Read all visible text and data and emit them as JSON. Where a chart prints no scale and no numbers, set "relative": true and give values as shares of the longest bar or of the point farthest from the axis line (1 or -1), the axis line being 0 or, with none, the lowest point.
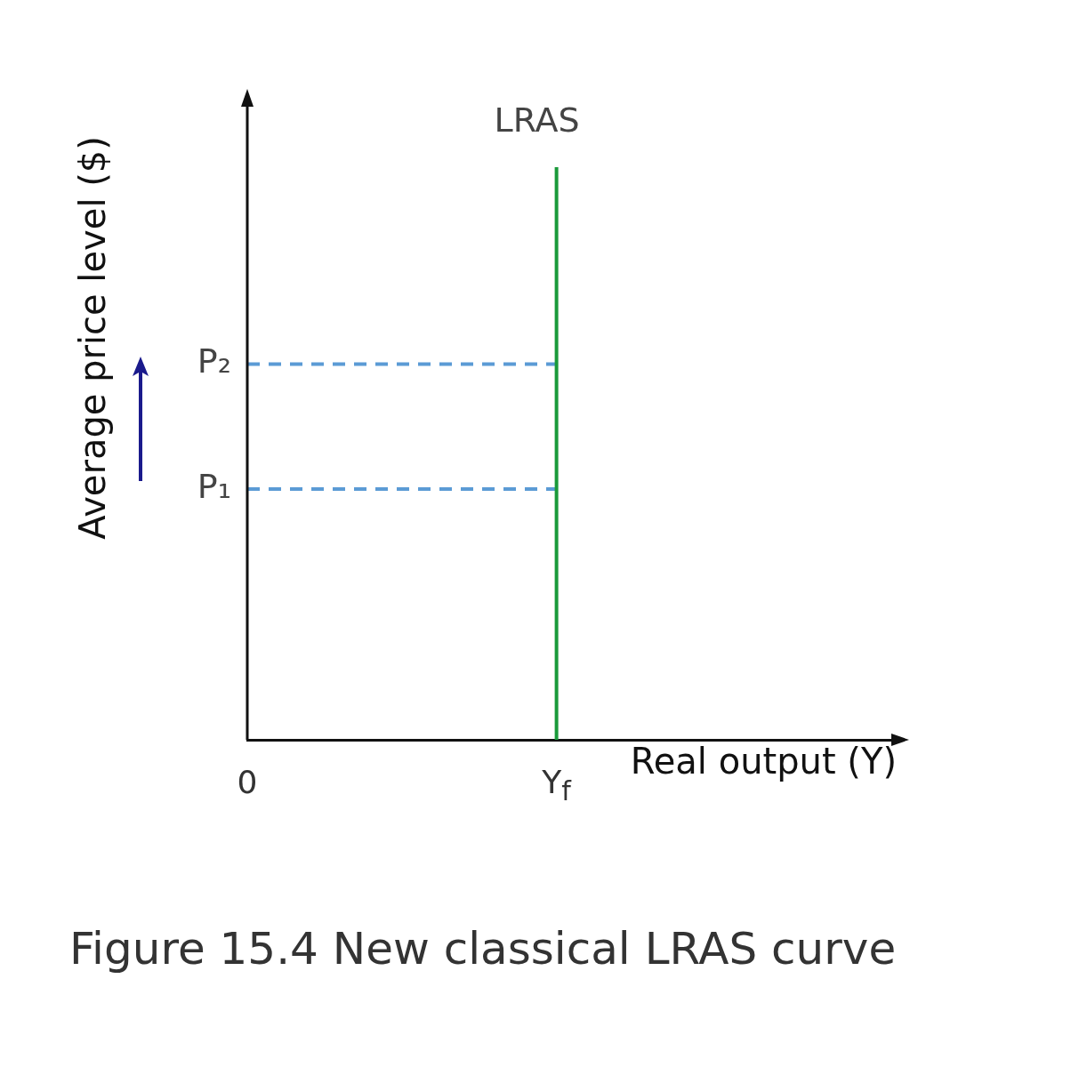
{
  "chart_data": {
    "type": "line",
    "relative": true,
    "xlabel": "Real output (Y)",
    "ylabel": "Average price level ($)",
    "legend": false,
    "grid": false,
    "tick_labels": "x",
    "categories": [
      "0",
      null,
      null,
      null,
      null,
      null,
      null,
      null,
      null,
      null,
      "Y$_{f}$",
      null,
      null,
      null,
      null,
      null,
      null,
      null,
      null,
      null,
      null,
      null
    ],
    "series": [
      {
        "name": "LRAS",
        "color": "#1a9a3a",
        "x": [
          "Y$_{f}$",
          "Y$_{f}$"
        ],
        "values": [
          0,
          1
        ],
        "line_style": "solid"
      },
      {
        "name": "P₂",
        "color": "#5b9bd5",
        "x": [
          "0",
          "Y$_{f}$"
        ],
        "values": [
          0.656,
          0.656
        ],
        "line_style": "dashed"
      },
      {
        "name": "P₁",
        "color": "#5b9bd5",
        "x": [
          "0",
          "Y$_{f}$"
        ],
        "values": [
          0.438,
          0.438
        ],
        "line_style": "dashed"
      }
    ],
    "annotations": [
      "Figure 15.4 New classical LRAS curve"
    ]
  }
}
